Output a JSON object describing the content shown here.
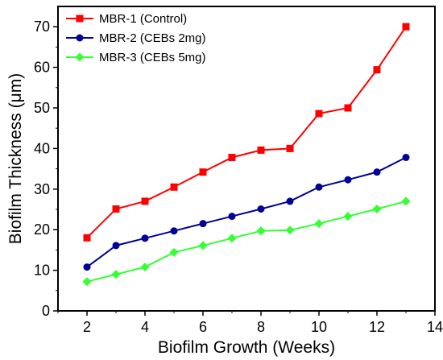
{
  "chart_data": {
    "type": "line",
    "xlabel": "Biofilm Growth (Weeks)",
    "ylabel": "Biofilm Thickness (μm)",
    "xlim": [
      1,
      14
    ],
    "ylim": [
      0,
      75
    ],
    "x_ticks": [
      2,
      4,
      6,
      8,
      10,
      12,
      14
    ],
    "y_ticks": [
      0,
      10,
      20,
      30,
      40,
      50,
      60,
      70
    ],
    "grid": false,
    "legend_position": "top-left",
    "x": [
      2,
      3,
      4,
      5,
      6,
      7,
      8,
      9,
      10,
      11,
      12,
      13
    ],
    "series": [
      {
        "name": "MBR-1 (Control)",
        "color": "#ff0000",
        "marker": "square",
        "values": [
          18.0,
          25.1,
          27.0,
          30.5,
          34.2,
          37.8,
          39.6,
          40.0,
          48.6,
          50.0,
          59.4,
          70.0
        ]
      },
      {
        "name": "MBR-2 (CEBs 2mg)",
        "color": "#000099",
        "marker": "circle",
        "values": [
          10.8,
          16.1,
          17.9,
          19.7,
          21.5,
          23.3,
          25.1,
          27.0,
          30.5,
          32.3,
          34.2,
          37.8
        ]
      },
      {
        "name": "MBR-3 (CEBs 5mg)",
        "color": "#33ff33",
        "marker": "diamond",
        "values": [
          7.2,
          9.0,
          10.8,
          14.4,
          16.1,
          17.9,
          19.7,
          19.9,
          21.5,
          23.3,
          25.1,
          27.0
        ]
      }
    ]
  }
}
